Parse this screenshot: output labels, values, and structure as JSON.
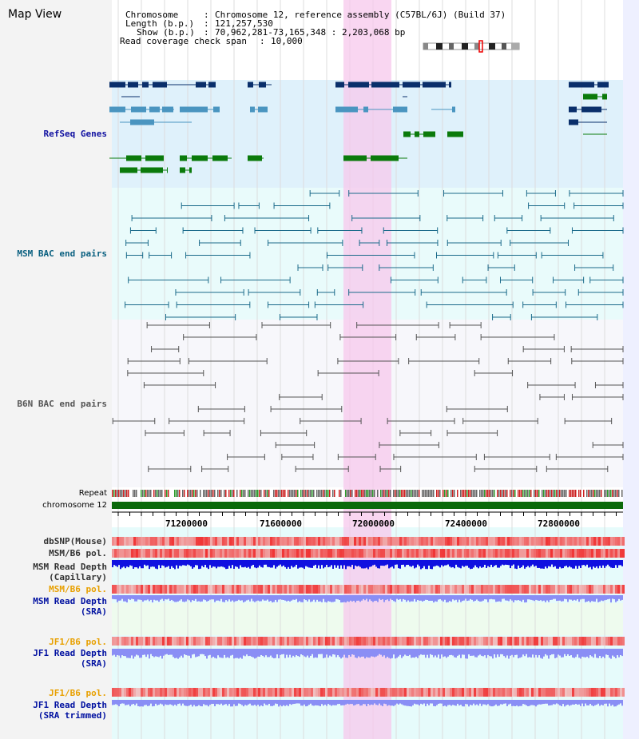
{
  "app": {
    "title": "Map View"
  },
  "header": {
    "chromosome_key": "Chromosome",
    "chromosome_value": "Chromosome 12, reference assembly (C57BL/6J) (Build 37)",
    "length_key": "Length (b.p.)",
    "length_value": "121,257,530",
    "show_key": "Show (b.p.)",
    "show_value": "70,962,281-73,165,348 : 2,203,068 bp",
    "coverage_key": "Read coverage check span",
    "coverage_value": "10,000"
  },
  "tracks": {
    "refseq": "RefSeq Genes",
    "msm_bac": "MSM BAC end pairs",
    "b6n_bac": "B6N BAC end pairs",
    "repeat": "Repeat",
    "chromosome": "chromosome 12",
    "dbsnp": "dbSNP(Mouse)",
    "msm_b6_pol_1": "MSM/B6 pol.",
    "msm_read_depth_cap_1": "MSM Read Depth",
    "msm_read_depth_cap_2": "(Capillary)",
    "msm_b6_pol_2": "MSM/B6 pol.",
    "msm_read_depth_sra_1": "MSM Read Depth",
    "msm_read_depth_sra_2": "(SRA)",
    "jf1_b6_pol_1": "JF1/B6 pol.",
    "jf1_read_depth_sra_1": "JF1 Read Depth",
    "jf1_read_depth_sra_2": "(SRA)",
    "jf1_b6_pol_2": "JF1/B6 pol.",
    "jf1_read_depth_trim_1": "JF1 Read Depth",
    "jf1_read_depth_trim_2": "(SRA trimmed)"
  },
  "axis": {
    "ticks": [
      "71200000",
      "71600000",
      "72000000",
      "72400000",
      "72800000"
    ]
  },
  "colors": {
    "refseq_dark": "#0a2f6b",
    "refseq_mid": "#4a95c0",
    "refseq_green": "#0b7a0b",
    "msm_bac": "#1a6a8a",
    "b6n_bac": "#555555",
    "highlight": "#f7c8ec",
    "read_depth_dark": "#1010e0",
    "read_depth_light": "#8a8ef5",
    "pol_red": "#e83030",
    "msm_label": "#0a3a8a",
    "pol_label": "#e8a000",
    "track_label_blue": "#0010a0"
  }
}
